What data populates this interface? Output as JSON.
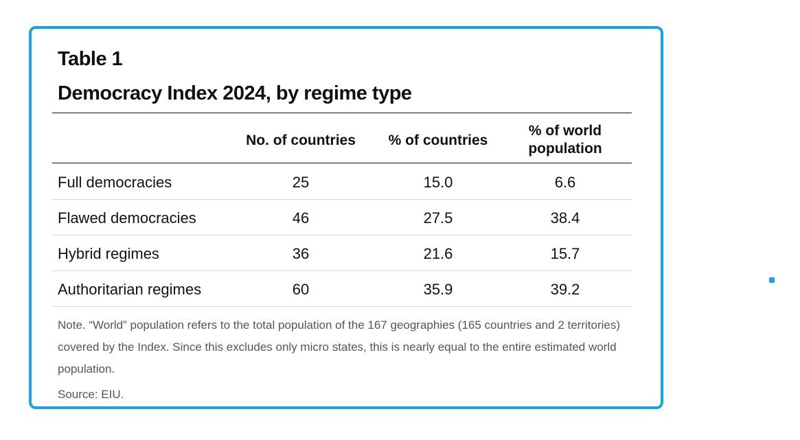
{
  "chart_data": {
    "type": "table",
    "label": "Table 1",
    "title": "Democracy Index 2024, by regime type",
    "columns": [
      "",
      "No. of countries",
      "% of countries",
      "% of world population"
    ],
    "header_lines": {
      "col1": "No. of countries",
      "col2": "% of countries",
      "col3_line1": "% of world",
      "col3_line2": "population"
    },
    "rows": [
      {
        "label": "Full democracies",
        "countries": "25",
        "pct_countries": "15.0",
        "pct_population": "6.6"
      },
      {
        "label": "Flawed democracies",
        "countries": "46",
        "pct_countries": "27.5",
        "pct_population": "38.4"
      },
      {
        "label": "Hybrid regimes",
        "countries": "36",
        "pct_countries": "21.6",
        "pct_population": "15.7"
      },
      {
        "label": "Authoritarian regimes",
        "countries": "60",
        "pct_countries": "35.9",
        "pct_population": "39.2"
      }
    ],
    "note": "Note. “World” population refers to the total population of the 167 geographies (165 countries and 2 territories) covered by the Index. Since this excludes only micro states, this is nearly equal to the entire estimated world population.",
    "source": "Source: EIU."
  },
  "colors": {
    "frame_border": "#1aa3e0",
    "text": "#111111",
    "note_text": "#555555",
    "row_divider": "#d8d8d8"
  }
}
